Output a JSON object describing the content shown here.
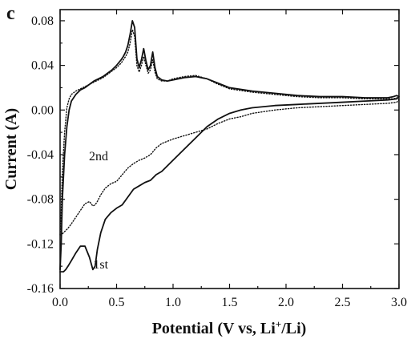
{
  "panel_label": "c",
  "chart_data": {
    "type": "line",
    "title": "",
    "xlabel": "Potential (V vs, Li",
    "xlabel_superscript": "+",
    "xlabel_suffix": "/Li)",
    "ylabel": "Current (A)",
    "xlim": [
      0.0,
      3.0
    ],
    "ylim": [
      -0.16,
      0.09
    ],
    "xticks": [
      {
        "value": 0.0,
        "label": "0.0"
      },
      {
        "value": 0.5,
        "label": "0.5"
      },
      {
        "value": 1.0,
        "label": "1.0"
      },
      {
        "value": 1.5,
        "label": "1.5"
      },
      {
        "value": 2.0,
        "label": "2.0"
      },
      {
        "value": 2.5,
        "label": "2.5"
      },
      {
        "value": 3.0,
        "label": "3.0"
      }
    ],
    "yticks": [
      {
        "value": 0.08,
        "label": "0.08"
      },
      {
        "value": 0.04,
        "label": "0.04"
      },
      {
        "value": 0.0,
        "label": "0.00"
      },
      {
        "value": -0.04,
        "label": "-0.04"
      },
      {
        "value": -0.08,
        "label": "-0.08"
      },
      {
        "value": -0.12,
        "label": "-0.12"
      },
      {
        "value": -0.16,
        "label": "-0.16"
      }
    ],
    "grid": false,
    "legend": "none",
    "series": [
      {
        "label_text": "1st",
        "style": "solid",
        "color": "#111111",
        "x": [
          0.0,
          0.01,
          0.02,
          0.04,
          0.06,
          0.08,
          0.1,
          0.14,
          0.18,
          0.22,
          0.26,
          0.3,
          0.34,
          0.38,
          0.42,
          0.46,
          0.5,
          0.54,
          0.56,
          0.58,
          0.6,
          0.62,
          0.64,
          0.66,
          0.68,
          0.7,
          0.72,
          0.74,
          0.76,
          0.78,
          0.8,
          0.82,
          0.84,
          0.86,
          0.9,
          0.95,
          1.0,
          1.1,
          1.2,
          1.3,
          1.4,
          1.5,
          1.7,
          1.9,
          2.1,
          2.3,
          2.5,
          2.7,
          2.9,
          2.95,
          2.98,
          3.0,
          2.98,
          2.9,
          2.7,
          2.5,
          2.3,
          2.1,
          1.9,
          1.7,
          1.6,
          1.5,
          1.4,
          1.3,
          1.2,
          1.1,
          1.0,
          0.95,
          0.9,
          0.85,
          0.8,
          0.75,
          0.7,
          0.65,
          0.6,
          0.55,
          0.5,
          0.45,
          0.4,
          0.36,
          0.33,
          0.31,
          0.29,
          0.26,
          0.22,
          0.18,
          0.14,
          0.1,
          0.07,
          0.05,
          0.03,
          0.02,
          0.01,
          0.0
        ],
        "y": [
          -0.143,
          -0.12,
          -0.08,
          -0.04,
          -0.015,
          0.0,
          0.008,
          0.014,
          0.018,
          0.02,
          0.023,
          0.026,
          0.028,
          0.03,
          0.033,
          0.036,
          0.04,
          0.045,
          0.048,
          0.052,
          0.058,
          0.068,
          0.08,
          0.074,
          0.046,
          0.038,
          0.045,
          0.055,
          0.044,
          0.036,
          0.04,
          0.052,
          0.038,
          0.03,
          0.027,
          0.026,
          0.027,
          0.029,
          0.03,
          0.028,
          0.024,
          0.02,
          0.017,
          0.015,
          0.013,
          0.012,
          0.012,
          0.011,
          0.011,
          0.012,
          0.013,
          0.012,
          0.01,
          0.009,
          0.008,
          0.007,
          0.006,
          0.005,
          0.004,
          0.002,
          0.0,
          -0.003,
          -0.008,
          -0.015,
          -0.025,
          -0.035,
          -0.045,
          -0.05,
          -0.055,
          -0.058,
          -0.063,
          -0.065,
          -0.068,
          -0.071,
          -0.078,
          -0.085,
          -0.088,
          -0.092,
          -0.098,
          -0.11,
          -0.125,
          -0.14,
          -0.143,
          -0.132,
          -0.122,
          -0.122,
          -0.128,
          -0.135,
          -0.14,
          -0.143,
          -0.145,
          -0.145,
          -0.145,
          -0.145
        ]
      },
      {
        "label_text": "2nd",
        "style": "dotted",
        "color": "#111111",
        "x": [
          0.0,
          0.01,
          0.02,
          0.04,
          0.06,
          0.08,
          0.1,
          0.14,
          0.18,
          0.22,
          0.26,
          0.3,
          0.34,
          0.38,
          0.42,
          0.46,
          0.5,
          0.54,
          0.56,
          0.58,
          0.6,
          0.62,
          0.64,
          0.66,
          0.68,
          0.7,
          0.72,
          0.74,
          0.76,
          0.78,
          0.8,
          0.82,
          0.84,
          0.86,
          0.9,
          0.95,
          1.0,
          1.1,
          1.2,
          1.3,
          1.4,
          1.5,
          1.7,
          1.9,
          2.1,
          2.3,
          2.5,
          2.7,
          2.9,
          2.95,
          2.98,
          3.0,
          2.98,
          2.9,
          2.7,
          2.5,
          2.3,
          2.1,
          1.9,
          1.7,
          1.6,
          1.5,
          1.4,
          1.3,
          1.2,
          1.1,
          1.0,
          0.95,
          0.9,
          0.85,
          0.8,
          0.75,
          0.7,
          0.65,
          0.6,
          0.55,
          0.5,
          0.45,
          0.4,
          0.36,
          0.33,
          0.31,
          0.29,
          0.26,
          0.22,
          0.18,
          0.14,
          0.1,
          0.07,
          0.05,
          0.03,
          0.02,
          0.01,
          0.0
        ],
        "y": [
          -0.112,
          -0.09,
          -0.055,
          -0.02,
          0.002,
          0.01,
          0.014,
          0.017,
          0.019,
          0.021,
          0.023,
          0.025,
          0.027,
          0.029,
          0.032,
          0.035,
          0.038,
          0.042,
          0.045,
          0.048,
          0.052,
          0.06,
          0.072,
          0.066,
          0.04,
          0.034,
          0.04,
          0.048,
          0.04,
          0.033,
          0.036,
          0.045,
          0.034,
          0.028,
          0.026,
          0.026,
          0.028,
          0.03,
          0.031,
          0.028,
          0.023,
          0.019,
          0.016,
          0.014,
          0.012,
          0.011,
          0.011,
          0.01,
          0.01,
          0.01,
          0.011,
          0.009,
          0.007,
          0.006,
          0.005,
          0.004,
          0.003,
          0.002,
          0.0,
          -0.003,
          -0.006,
          -0.008,
          -0.012,
          -0.017,
          -0.02,
          -0.023,
          -0.026,
          -0.028,
          -0.03,
          -0.034,
          -0.04,
          -0.043,
          -0.045,
          -0.048,
          -0.052,
          -0.058,
          -0.064,
          -0.066,
          -0.07,
          -0.076,
          -0.082,
          -0.085,
          -0.086,
          -0.082,
          -0.084,
          -0.09,
          -0.096,
          -0.102,
          -0.106,
          -0.108,
          -0.11,
          -0.111,
          -0.112,
          -0.112
        ]
      }
    ],
    "annotations": [
      {
        "text": "2nd",
        "x": 0.34,
        "y": -0.045
      },
      {
        "text": "1st",
        "x": 0.36,
        "y": -0.142
      }
    ]
  }
}
